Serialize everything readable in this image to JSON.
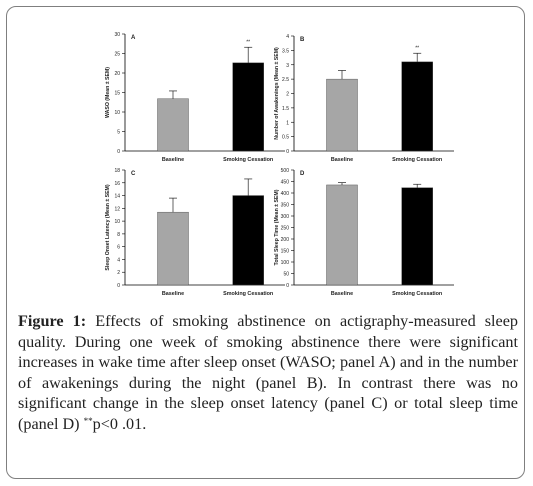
{
  "caption": {
    "label": "Figure 1:",
    "text_before_stars": "Effects of smoking abstinence on actigraphy-measured sleep quality. During one week of smoking abstinence there were significant increases in wake time after sleep onset (WASO; panel A) and in the number of awakenings during the night (panel B). In contrast there was no significant change in the sleep onset latency (panel C) or total sleep time (panel D) ",
    "stars": "**",
    "text_after_stars": "p<0 .01."
  },
  "colors": {
    "baseline": "#a6a6a6",
    "cessation": "#000000",
    "axis": "#000000"
  },
  "chart_data": [
    {
      "type": "bar",
      "panel": "A",
      "categories": [
        "Baseline",
        "Smoking Cessation"
      ],
      "values": [
        13.4,
        22.6
      ],
      "errors": [
        2.0,
        4.0
      ],
      "ylabel": "WASO (Mean ± SEM)",
      "ylim": [
        0,
        30
      ],
      "yticks": [
        0,
        5,
        10,
        15,
        20,
        25,
        30
      ],
      "annotations": [
        "",
        "**"
      ]
    },
    {
      "type": "bar",
      "panel": "B",
      "categories": [
        "Baseline",
        "Smoking Cessation"
      ],
      "values": [
        2.5,
        3.1
      ],
      "errors": [
        0.3,
        0.3
      ],
      "ylabel": "Number of Awakenings (Mean ± SEM)",
      "ylim": [
        0,
        4
      ],
      "yticks": [
        0,
        0.5,
        1,
        1.5,
        2,
        2.5,
        3,
        3.5,
        4
      ],
      "annotations": [
        "",
        "**"
      ]
    },
    {
      "type": "bar",
      "panel": "C",
      "categories": [
        "Baseline",
        "Smoking Cessation"
      ],
      "values": [
        11.4,
        14.0
      ],
      "errors": [
        2.2,
        2.6
      ],
      "ylabel": "Sleep Onset Latency (Mean ± SEM)",
      "ylim": [
        0,
        18
      ],
      "yticks": [
        0,
        2,
        4,
        6,
        8,
        10,
        12,
        14,
        16,
        18
      ],
      "annotations": [
        "",
        ""
      ]
    },
    {
      "type": "bar",
      "panel": "D",
      "categories": [
        "Baseline",
        "Smoking Cessation"
      ],
      "values": [
        435,
        423
      ],
      "errors": [
        10,
        15
      ],
      "ylabel": "Total Sleep Time (Mean ± SEM)",
      "ylim": [
        0,
        500
      ],
      "yticks": [
        0,
        50,
        100,
        150,
        200,
        250,
        300,
        350,
        400,
        450,
        500
      ],
      "annotations": [
        "",
        ""
      ]
    }
  ]
}
